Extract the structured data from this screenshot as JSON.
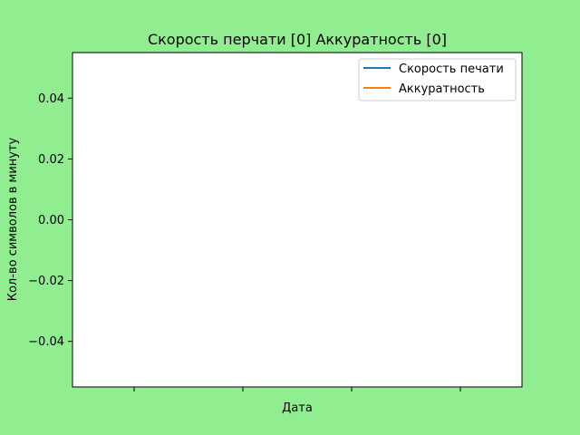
{
  "chart_data": {
    "type": "line",
    "title": "Скорость перчати [0]   Аккуратность [0]",
    "xlabel": "Дата",
    "ylabel": "Кол-во символов в минуту",
    "ylim": [
      -0.055,
      0.055
    ],
    "yticks": [
      0.04,
      0.02,
      0.0,
      -0.02,
      -0.04
    ],
    "ytick_labels": [
      "0.04",
      "0.02",
      "0.00",
      "−0.02",
      "−0.04"
    ],
    "xtick_count": 4,
    "x": [],
    "series": [
      {
        "name": "Скорость печати",
        "color": "#1f77b4",
        "values": []
      },
      {
        "name": "Аккуратность",
        "color": "#ff7f0e",
        "values": []
      }
    ],
    "legend_position": "top-right",
    "grid": false
  },
  "colors": {
    "figure_background": "#90ee90",
    "plot_background": "#ffffff"
  }
}
